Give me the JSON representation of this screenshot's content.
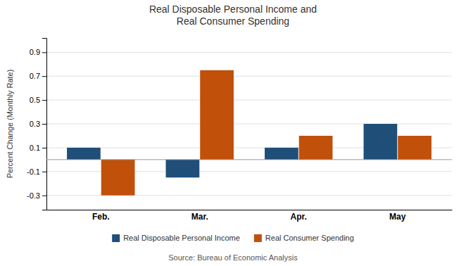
{
  "chart_data": {
    "type": "bar",
    "title": "Real Disposable Personal Income and\nReal Consumer Spending",
    "ylabel": "Percent Change (Monthly Rate)",
    "source": "Source: Bureau of Economic Analysis",
    "categories": [
      "Feb.",
      "Mar.",
      "Apr.",
      "May"
    ],
    "series": [
      {
        "name": "Real Disposable Personal Income",
        "color": "#1F4E79",
        "values": [
          0.1,
          -0.15,
          0.1,
          0.3
        ]
      },
      {
        "name": "Real Consumer Spending",
        "color": "#C0500A",
        "values": [
          -0.3,
          0.75,
          0.2,
          0.2
        ]
      }
    ],
    "ylim": [
      -0.42,
      1.02
    ],
    "yticks": [
      -0.3,
      -0.1,
      0.1,
      0.3,
      0.5,
      0.7,
      0.9
    ],
    "grid": true,
    "legend": "bottom"
  }
}
